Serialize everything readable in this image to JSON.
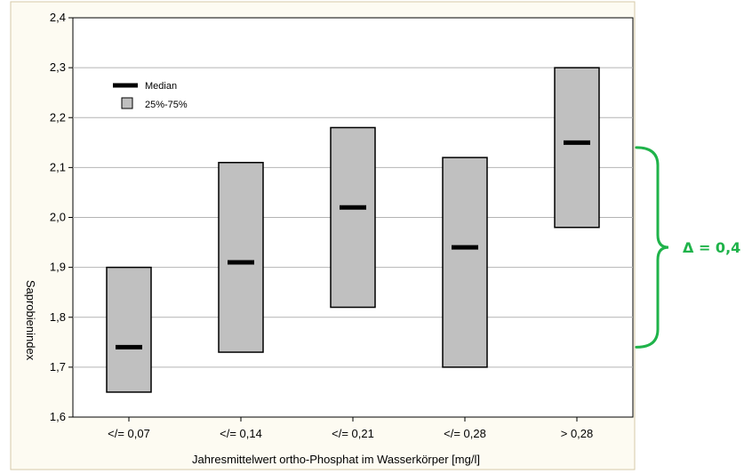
{
  "chart_data": {
    "type": "box",
    "xlabel": "Jahresmittelwert ortho-Phosphat im Wasserkörper [mg/l]",
    "ylabel": "Saprobienindex",
    "ylim": [
      1.6,
      2.4
    ],
    "yticks": [
      "1,6",
      "1,7",
      "1,8",
      "1,9",
      "2,0",
      "2,1",
      "2,2",
      "2,3",
      "2,4"
    ],
    "ytick_values": [
      1.6,
      1.7,
      1.8,
      1.9,
      2.0,
      2.1,
      2.2,
      2.3,
      2.4
    ],
    "categories": [
      "</= 0,07",
      "</= 0,14",
      "</= 0,21",
      "</= 0,28",
      "> 0,28"
    ],
    "boxes": [
      {
        "q1": 1.65,
        "median": 1.74,
        "q3": 1.9
      },
      {
        "q1": 1.73,
        "median": 1.91,
        "q3": 2.11
      },
      {
        "q1": 1.82,
        "median": 2.02,
        "q3": 2.18
      },
      {
        "q1": 1.7,
        "median": 1.94,
        "q3": 2.12
      },
      {
        "q1": 1.98,
        "median": 2.15,
        "q3": 2.3
      }
    ],
    "grid": true,
    "legend": {
      "position": "top-left",
      "median_label": "Median",
      "box_label": "25%-75%"
    },
    "annotation": {
      "text": "Δ = 0,4",
      "range": [
        1.74,
        2.14
      ],
      "color": "#1fb34a"
    },
    "colors": {
      "box_fill": "#c0c0c0",
      "median": "#000000",
      "grid": "#b4b4b4",
      "background": "#fdfbf2"
    }
  }
}
